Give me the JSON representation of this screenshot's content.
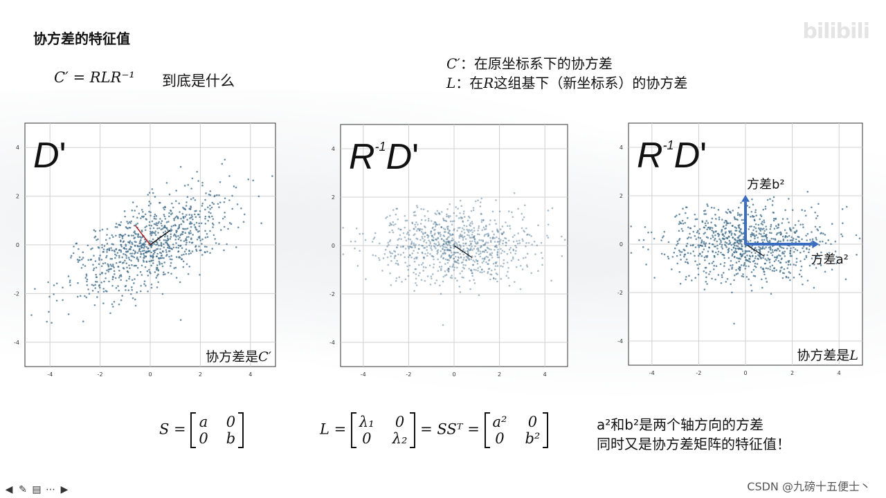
{
  "title": "协方差的特征值",
  "formula_top": "C′ = RLR⁻¹",
  "question": "到底是什么",
  "notes": {
    "line1_symbol": "C′",
    "line1_text": "：在原坐标系下的协方差",
    "line2_symbol": "L",
    "line2_mid": "：在",
    "line2_symbol2": "R",
    "line2_text": "这组基下（新坐标系）的协方差"
  },
  "plots": [
    {
      "label_main": "D",
      "label_sup": "'",
      "label_prefix": "",
      "caption": "协方差是",
      "caption_symbol": "C′"
    },
    {
      "label_main": "D",
      "label_sup": "'",
      "label_prefix": "R",
      "label_prefix_sup": "-1",
      "caption": "",
      "caption_symbol": ""
    },
    {
      "label_main": "D",
      "label_sup": "'",
      "label_prefix": "R",
      "label_prefix_sup": "-1",
      "caption": "协方差是",
      "caption_symbol": "L",
      "axis_b": "方差b²",
      "axis_a": "方差a²"
    }
  ],
  "ticks": {
    "x": [
      "-4",
      "-2",
      "0",
      "2",
      "4"
    ],
    "y": [
      "4",
      "2",
      "0",
      "-2",
      "-4"
    ]
  },
  "bottom": {
    "S_lhs": "S =",
    "S_m": [
      "a",
      "0",
      "0",
      "b"
    ],
    "L_lhs": "L =",
    "L_m": [
      "λ₁",
      "0",
      "0",
      "λ₂"
    ],
    "L_eq": "= SSᵀ =",
    "L_m2": [
      "a²",
      "0",
      "0",
      "b²"
    ],
    "text1": "a²和b²是两个轴方向的方差",
    "text2": "同时又是协方差矩阵的特征值！"
  },
  "watermark": "bilibili",
  "csdn": "CSDN @九磅十五便士丶",
  "colors": {
    "point": "#3d6b8a",
    "arrow": "#3a6cc0",
    "red": "#b02020"
  },
  "toolbar_icons": [
    "arrow-left-icon",
    "pen-icon",
    "slides-icon",
    "more-icon",
    "arrow-right-icon"
  ]
}
